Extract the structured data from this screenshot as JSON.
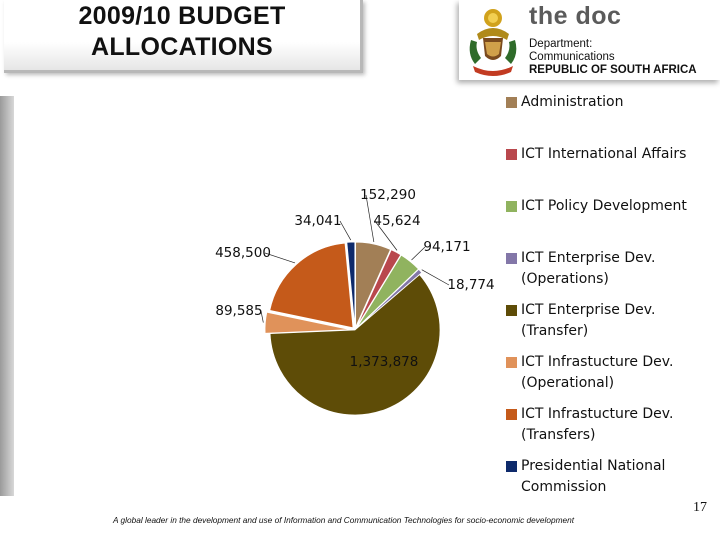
{
  "slide": {
    "title_lines": [
      "2009/10 BUDGET",
      "ALLOCATIONS"
    ],
    "footer": "A global leader in the development and use of Information and Communication Technologies for socio-economic development",
    "page_number": "17"
  },
  "logo": {
    "wordmark": "the doc",
    "lines": [
      "Department:",
      "Communications",
      "REPUBLIC OF SOUTH AFRICA"
    ],
    "emblem": "coat-of-arms-icon"
  },
  "chart_data": {
    "type": "pie",
    "start_direction": "clockwise from top",
    "categories": [
      "Administration",
      "ICT International Affairs",
      "ICT Policy Development",
      "ICT Enterprise Dev. (Operations)",
      "ICT Enterprise Dev. (Transfer)",
      "ICT Infrastucture Dev. (Operational)",
      "ICT Infrastucture Dev. (Transfers)",
      "Presidential National Commission"
    ],
    "values": [
      152290,
      45624,
      94171,
      18774,
      1373878,
      89585,
      458500,
      34041
    ],
    "data_labels": [
      "152,290",
      "45,624",
      "94,171",
      "18,774",
      "1,373,878",
      "89,585",
      "458,500",
      "34,041"
    ],
    "colors": [
      "#a27f56",
      "#b9484d",
      "#90b35f",
      "#8377a8",
      "#5e4c07",
      "#e0925a",
      "#c55a1a",
      "#0e2a6b"
    ],
    "legend_position": "right"
  }
}
